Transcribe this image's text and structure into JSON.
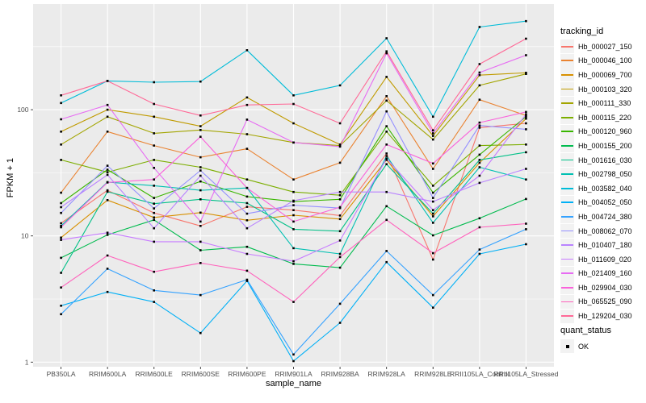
{
  "colors": {
    "panel_bg": "#EBEBEB",
    "grid_major": "#FFFFFF",
    "grid_minor": "#FFFFFF",
    "tick_mark": "#333333",
    "tick_label": "#4D4D4D",
    "axis_title": "#000000",
    "point": "#000000",
    "legend_key_bg": "#F2F2F2"
  },
  "chart_data": {
    "type": "line",
    "title": "",
    "xlabel": "sample_name",
    "ylabel": "FPKM + 1",
    "y_scale": "log10",
    "y_ticks": [
      1,
      10,
      100
    ],
    "y_minor_ticks": [
      3.1623,
      31.623,
      316.23
    ],
    "ylim": [
      1,
      680
    ],
    "grid": true,
    "legend_position": "right",
    "legend_title": "tracking_id",
    "quant_legend": {
      "title": "quant_status",
      "items": [
        "OK"
      ]
    },
    "point_marker": "square",
    "categories": [
      "PB350LA",
      "RRIM600LA",
      "RRIM600LE",
      "RRIM600SE",
      "RRIM600PE",
      "RRIM901LA",
      "RRIM928BA",
      "RRIM928LA",
      "RRIM928LE",
      "RRII105LA_Control",
      "RRII105LA_Stressed"
    ],
    "series": [
      {
        "name": "Hb_000027_150",
        "color": "#F8766D",
        "values": [
          12.6,
          23,
          15.2,
          12,
          17,
          16,
          14.5,
          45,
          6.5,
          72,
          78
        ]
      },
      {
        "name": "Hb_000046_100",
        "color": "#EA8331",
        "values": [
          22,
          67,
          52,
          42,
          49,
          28,
          38,
          128,
          34,
          120,
          90
        ]
      },
      {
        "name": "Hb_000069_700",
        "color": "#D89000",
        "values": [
          9.7,
          19.2,
          14,
          15.3,
          13.3,
          14.6,
          13.6,
          40,
          14.3,
          38,
          85
        ]
      },
      {
        "name": "Hb_000103_320",
        "color": "#C09B00",
        "values": [
          67,
          100,
          88,
          74,
          125,
          78,
          53,
          182,
          62,
          188,
          196
        ]
      },
      {
        "name": "Hb_000111_330",
        "color": "#A3A500",
        "values": [
          53,
          88,
          65,
          69,
          64,
          55,
          52,
          118,
          58,
          156,
          192
        ]
      },
      {
        "name": "Hb_000115_220",
        "color": "#7CAE00",
        "values": [
          40,
          32,
          40,
          35,
          28,
          22.3,
          21,
          67,
          25,
          52,
          53
        ]
      },
      {
        "name": "Hb_000120_960",
        "color": "#39B600",
        "values": [
          18.2,
          33.5,
          20,
          27,
          20.5,
          18.7,
          19.5,
          74,
          22,
          44,
          88
        ]
      },
      {
        "name": "Hb_000155_200",
        "color": "#00BB4E",
        "values": [
          6.7,
          10.2,
          13.4,
          7.7,
          8.2,
          6,
          5.6,
          17.2,
          10.1,
          13.8,
          19.6
        ]
      },
      {
        "name": "Hb_001616_030",
        "color": "#00C087",
        "values": [
          5.1,
          22.4,
          18,
          19.5,
          18.2,
          11.3,
          10.9,
          37,
          15,
          40,
          46
        ]
      },
      {
        "name": "Hb_002798_050",
        "color": "#00C0B2",
        "values": [
          12,
          26.7,
          25,
          23,
          24,
          8,
          7.2,
          43,
          12.7,
          35,
          28
        ]
      },
      {
        "name": "Hb_003582_040",
        "color": "#00BCD8",
        "values": [
          113,
          169,
          165,
          167,
          296,
          130,
          156,
          368,
          88,
          452,
          503
        ]
      },
      {
        "name": "Hb_004052_050",
        "color": "#00B0F6",
        "values": [
          2.8,
          3.6,
          3,
          1.7,
          4.4,
          1.02,
          2.05,
          6.2,
          2.7,
          7.2,
          8.6
        ]
      },
      {
        "name": "Hb_004724_380",
        "color": "#35A2FF",
        "values": [
          2.4,
          5.5,
          3.7,
          3.4,
          4.5,
          1.15,
          2.9,
          7.6,
          3.4,
          7.8,
          11.3
        ]
      },
      {
        "name": "Hb_008062_070",
        "color": "#9590FF",
        "values": [
          15.2,
          36,
          16.5,
          33,
          15,
          17.5,
          16.6,
          97,
          20,
          75,
          70
        ]
      },
      {
        "name": "Hb_010407_180",
        "color": "#B983FF",
        "values": [
          16.9,
          30.5,
          11.5,
          30,
          11.5,
          19,
          22.3,
          22.3,
          18.7,
          26.3,
          34
        ]
      },
      {
        "name": "Hb_011609_020",
        "color": "#C77CFF",
        "values": [
          9.3,
          10.6,
          9,
          9,
          7.2,
          6.3,
          9.2,
          41,
          16,
          30,
          92
        ]
      },
      {
        "name": "Hb_021409_160",
        "color": "#E76BF3",
        "values": [
          84,
          109,
          34.6,
          13,
          83.5,
          55,
          51,
          280,
          65,
          197,
          270
        ]
      },
      {
        "name": "Hb_029904_030",
        "color": "#FA62DB",
        "values": [
          11.7,
          26.5,
          28,
          61,
          24,
          13,
          16.9,
          53,
          37.5,
          79,
          96
        ]
      },
      {
        "name": "Hb_065525_090",
        "color": "#FF62BC",
        "values": [
          3.9,
          7,
          5.2,
          6.1,
          5.3,
          3,
          6.8,
          13.4,
          7.3,
          11.7,
          12.5
        ]
      },
      {
        "name": "Hb_129204_030",
        "color": "#FF6A98",
        "values": [
          130,
          169,
          111,
          90,
          109,
          111,
          78,
          290,
          68.6,
          230,
          365
        ]
      }
    ]
  }
}
